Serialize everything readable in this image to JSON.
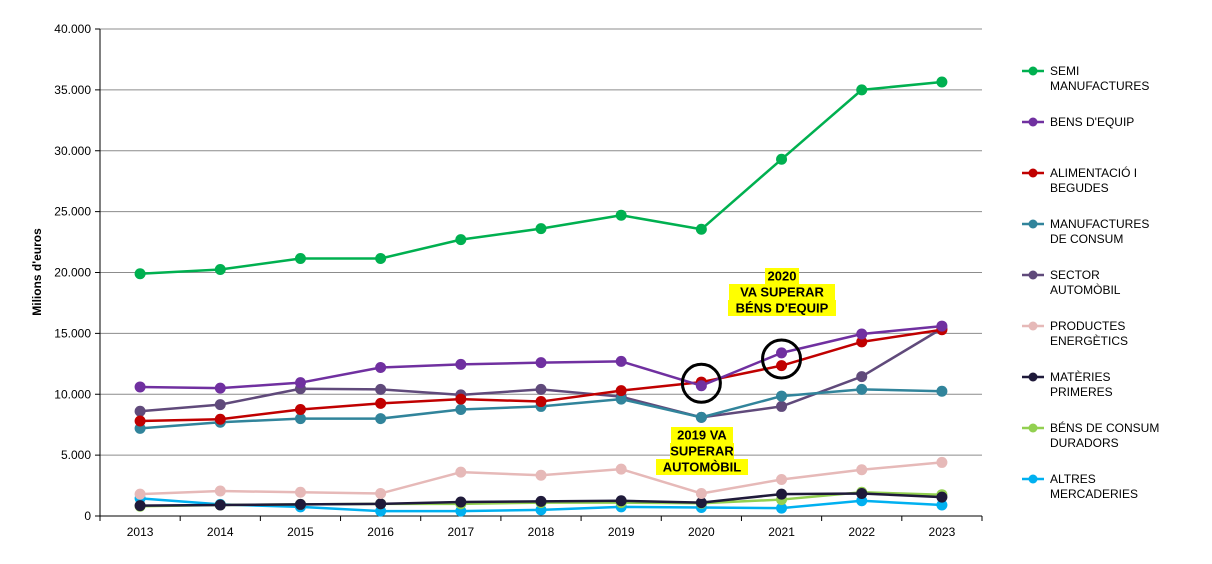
{
  "chart_data": {
    "type": "line",
    "title": "",
    "xlabel": "",
    "ylabel": "Milions d'euros",
    "ylim": [
      0,
      40000
    ],
    "yticks": [
      "0",
      "5.000",
      "10.000",
      "15.000",
      "20.000",
      "25.000",
      "30.000",
      "35.000",
      "40.000"
    ],
    "categories": [
      "2013",
      "2014",
      "2015",
      "2016",
      "2017",
      "2018",
      "2019",
      "2020",
      "2021",
      "2022",
      "2023"
    ],
    "grid": true,
    "legend_position": "right",
    "series": [
      {
        "name": "SEMI MANUFACTURES",
        "legend_lines": [
          "SEMI",
          "MANUFACTURES"
        ],
        "color": "#00b050",
        "values": [
          19900,
          20250,
          21150,
          21150,
          22700,
          23600,
          24700,
          23550,
          29300,
          35000,
          35650
        ]
      },
      {
        "name": "BENS D'EQUIP",
        "legend_lines": [
          "BENS D'EQUIP"
        ],
        "color": "#7030a0",
        "values": [
          10600,
          10500,
          10950,
          12200,
          12450,
          12600,
          12700,
          10700,
          13400,
          14950,
          15600
        ]
      },
      {
        "name": "ALIMENTACIÓ I BEGUDES",
        "legend_lines": [
          "ALIMENTACIÓ I",
          "BEGUDES"
        ],
        "color": "#c00000",
        "values": [
          7800,
          7950,
          8750,
          9250,
          9600,
          9400,
          10300,
          11000,
          12350,
          14300,
          15300
        ]
      },
      {
        "name": "MANUFACTURES DE CONSUM",
        "legend_lines": [
          "MANUFACTURES",
          "DE CONSUM"
        ],
        "color": "#31849b",
        "values": [
          7200,
          7700,
          8000,
          8000,
          8750,
          9000,
          9600,
          8100,
          9850,
          10400,
          10250
        ]
      },
      {
        "name": "SECTOR AUTOMÒBIL",
        "legend_lines": [
          "SECTOR",
          "AUTOMÒBIL"
        ],
        "color": "#604a7b",
        "values": [
          8600,
          9150,
          10450,
          10400,
          9950,
          10400,
          9800,
          8100,
          9000,
          11450,
          15400
        ]
      },
      {
        "name": "PRODUCTES ENERGÈTICS",
        "legend_lines": [
          "PRODUCTES",
          "ENERGÈTICS"
        ],
        "color": "#e6b9b8",
        "values": [
          1800,
          2050,
          1950,
          1850,
          3600,
          3350,
          3850,
          1850,
          3000,
          3800,
          4400
        ]
      },
      {
        "name": "MATÈRIES PRIMERES",
        "legend_lines": [
          "MATÈRIES",
          "PRIMERES"
        ],
        "color": "#1f1a3a",
        "values": [
          850,
          900,
          950,
          1000,
          1150,
          1200,
          1250,
          1100,
          1800,
          1850,
          1550
        ]
      },
      {
        "name": "BÉNS DE CONSUM DURADORS",
        "legend_lines": [
          "BÉNS DE CONSUM",
          "DURADORS"
        ],
        "color": "#92d050",
        "values": [
          800,
          900,
          950,
          1000,
          1000,
          1100,
          1100,
          1050,
          1350,
          1950,
          1750
        ]
      },
      {
        "name": "ALTRES MERCADERIES",
        "legend_lines": [
          "ALTRES",
          "MERCADERIES"
        ],
        "color": "#00b0f0",
        "values": [
          1450,
          950,
          750,
          400,
          400,
          500,
          750,
          700,
          650,
          1250,
          900
        ]
      }
    ],
    "annotations": [
      {
        "lines": [
          "2020",
          "VA  SUPERAR",
          "BÉNS D'EQUIP"
        ],
        "highlight": "#ffff00"
      },
      {
        "lines": [
          "2019 VA",
          "SUPERAR",
          "AUTOMÒBIL"
        ],
        "highlight": "#ffff00"
      }
    ]
  }
}
